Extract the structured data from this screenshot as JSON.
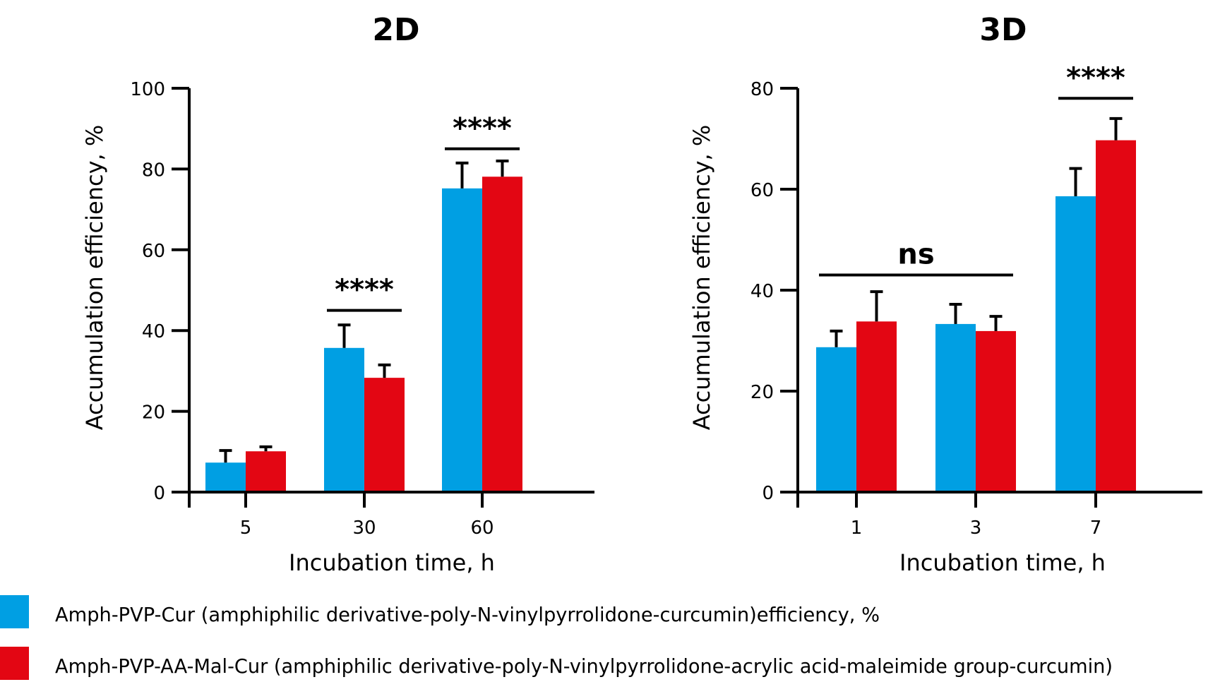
{
  "chart_data": [
    {
      "type": "bar",
      "title": "2D",
      "xlabel": "Incubation time, h",
      "ylabel": "Accumulation efficiency, %",
      "ylim": [
        0,
        100
      ],
      "yticks": [
        0,
        20,
        40,
        60,
        80,
        100
      ],
      "categories": [
        "5",
        "30",
        "60"
      ],
      "series": [
        {
          "name": "Amph-PVP-Cur",
          "color": "#009FE3",
          "values": [
            7.3,
            35.7,
            75.2
          ],
          "error": [
            3.0,
            5.7,
            6.3
          ]
        },
        {
          "name": "Amph-PVP-AA-Mal-Cur",
          "color": "#E30613",
          "values": [
            10.1,
            28.3,
            78.1
          ],
          "error": [
            1.1,
            3.2,
            3.9
          ]
        }
      ],
      "annotations": [
        {
          "text": "****",
          "from": 1,
          "to": 1,
          "level": 45
        },
        {
          "text": "****",
          "from": 2,
          "to": 2,
          "level": 85
        }
      ]
    },
    {
      "type": "bar",
      "title": "3D",
      "xlabel": "Incubation time, h",
      "ylabel": "Accumulation efficiency, %",
      "ylim": [
        0,
        80
      ],
      "yticks": [
        0,
        20,
        40,
        60,
        80
      ],
      "categories": [
        "1",
        "3",
        "7"
      ],
      "series": [
        {
          "name": "Amph-PVP-Cur",
          "color": "#009FE3",
          "values": [
            28.7,
            33.3,
            58.6
          ],
          "error": [
            3.2,
            3.9,
            5.5
          ]
        },
        {
          "name": "Amph-PVP-AA-Mal-Cur",
          "color": "#E30613",
          "values": [
            33.8,
            31.9,
            69.7
          ],
          "error": [
            5.9,
            2.9,
            4.3
          ]
        }
      ],
      "annotations": [
        {
          "text": "ns",
          "from": 0,
          "to": 1,
          "level": 43
        },
        {
          "text": "****",
          "from": 2,
          "to": 2,
          "level": 78
        }
      ]
    }
  ],
  "legend": [
    {
      "label": "Amph-PVP-Cur (amphiphilic derivative-poly-N-vinylpyrrolidone-curcumin)efficiency, %",
      "color": "#009FE3"
    },
    {
      "label": "Amph-PVP-AA-Mal-Cur (amphiphilic derivative-poly-N-vinylpyrrolidone-acrylic acid-maleimide group-curcumin)",
      "color": "#E30613"
    }
  ]
}
